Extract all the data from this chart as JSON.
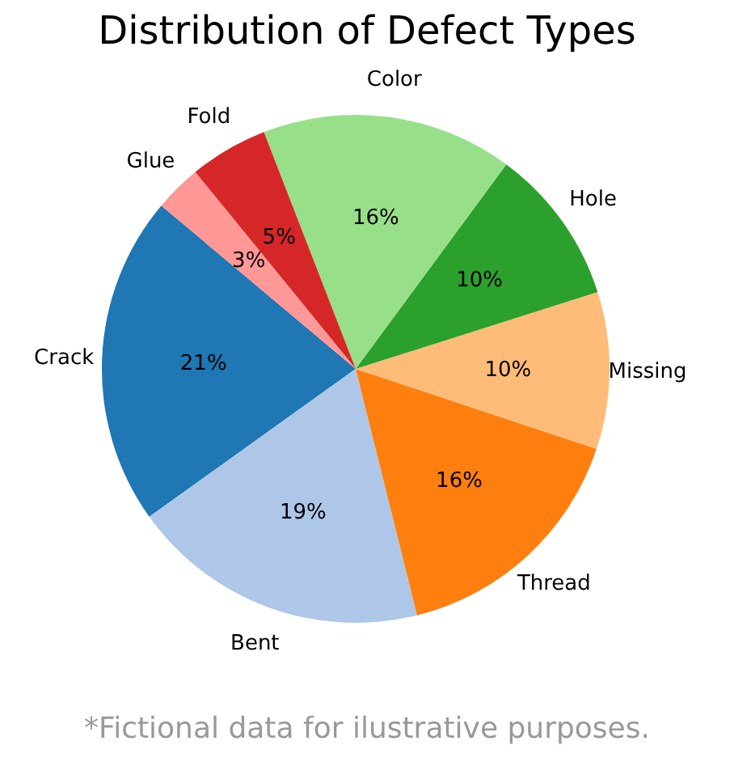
{
  "chart_data": {
    "type": "pie",
    "title": "Distribution of Defect Types",
    "categories": [
      "Crack",
      "Bent",
      "Thread",
      "Missing",
      "Hole",
      "Color",
      "Fold",
      "Glue"
    ],
    "values": [
      21,
      19,
      16,
      10,
      10,
      16,
      5,
      3
    ],
    "colors": [
      "#1f77b4",
      "#aec7e8",
      "#ff7f0e",
      "#ffbb78",
      "#2ca02c",
      "#98df8a",
      "#d62728",
      "#ff9896"
    ],
    "value_labels": [
      "21%",
      "19%",
      "16%",
      "10%",
      "10%",
      "16%",
      "5%",
      "3%"
    ],
    "annotations": [
      "*Fictional data for ilustrative purposes."
    ]
  }
}
